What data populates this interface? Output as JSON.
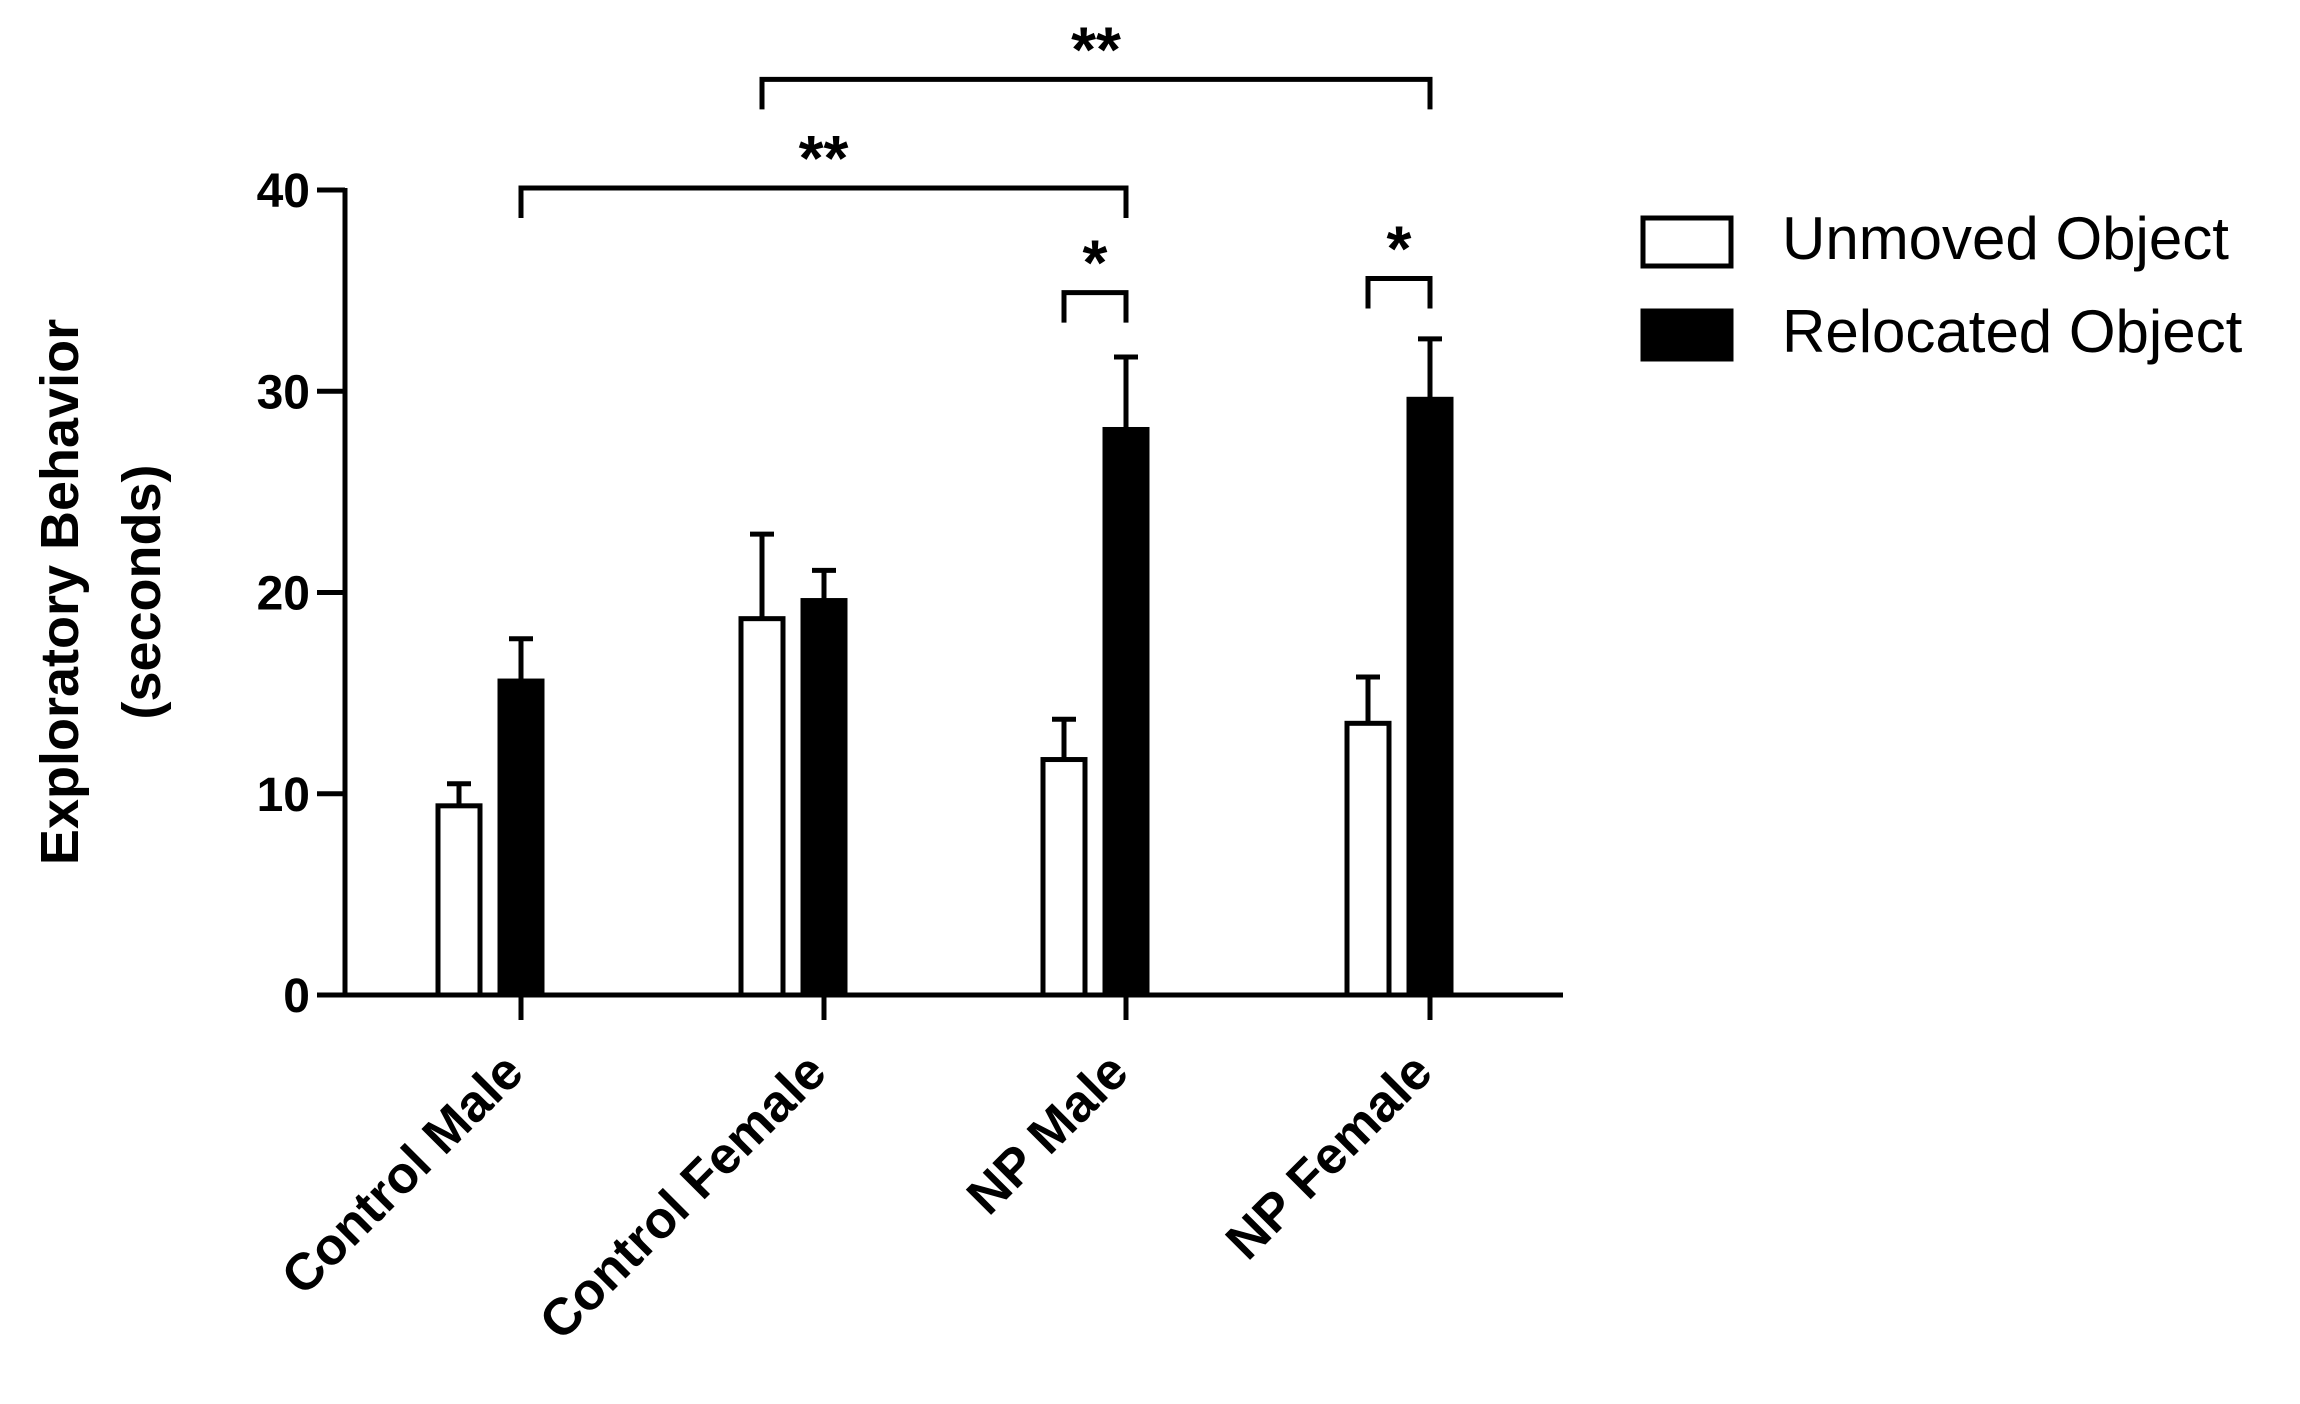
{
  "chart_data": {
    "type": "bar",
    "title": "",
    "ylabel_line1": "Exploratory Behavior",
    "ylabel_line2": "(seconds)",
    "xlabel": "",
    "ylim": [
      0,
      40
    ],
    "yticks": [
      0,
      10,
      20,
      30,
      40
    ],
    "categories": [
      "Control Male",
      "Control Female",
      "NP Male",
      "NP Female"
    ],
    "series": [
      {
        "name": "Unmoved Object",
        "values": [
          9.4,
          18.7,
          11.7,
          13.5
        ],
        "errors": [
          1.1,
          4.2,
          2.0,
          2.3
        ],
        "fill": "#ffffff"
      },
      {
        "name": "Relocated Object",
        "values": [
          15.6,
          19.6,
          28.1,
          29.6
        ],
        "errors": [
          2.1,
          1.5,
          3.6,
          3.0
        ],
        "fill": "#000000"
      }
    ],
    "legend_position": "top-right",
    "grid": false,
    "significance": [
      {
        "label": "*",
        "from": {
          "category": 2,
          "series": 0
        },
        "to": {
          "category": 2,
          "series": 1
        },
        "level": 34.9
      },
      {
        "label": "*",
        "from": {
          "category": 3,
          "series": 0
        },
        "to": {
          "category": 3,
          "series": 1
        },
        "level": 35.6
      },
      {
        "label": "**",
        "from": {
          "category": 0,
          "series": 1
        },
        "to": {
          "category": 2,
          "series": 1
        },
        "level": 40.1
      },
      {
        "label": "**",
        "from": {
          "category": 1,
          "series": 0
        },
        "to": {
          "category": 3,
          "series": 1
        },
        "level": 45.5
      }
    ]
  }
}
